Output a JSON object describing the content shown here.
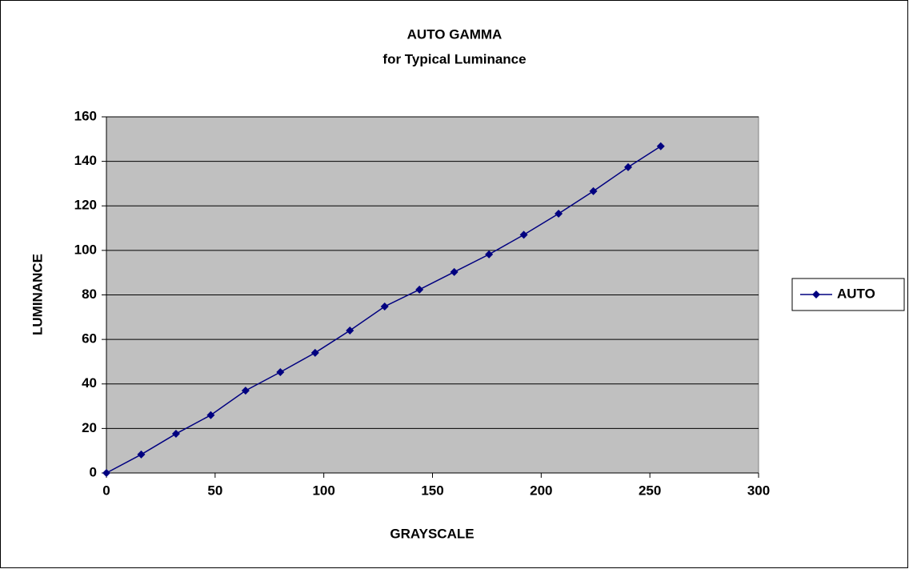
{
  "chart_data": {
    "type": "line",
    "title": "AUTO GAMMA",
    "subtitle": "for Typical Luminance",
    "x_label": "GRAYSCALE",
    "y_label": "LUMINANCE",
    "x": [
      0,
      16,
      32,
      48,
      64,
      80,
      96,
      112,
      128,
      144,
      160,
      176,
      192,
      208,
      224,
      240,
      255
    ],
    "series": [
      {
        "name": "AUTO",
        "color": "#000080",
        "values": [
          0,
          8.3,
          17.6,
          26,
          37,
          45.3,
          54,
          64,
          74.8,
          82.4,
          90.3,
          98.2,
          107,
          116.5,
          126.6,
          137.4,
          146.8
        ]
      }
    ],
    "xlim": [
      0,
      300
    ],
    "xticks": [
      0,
      50,
      100,
      150,
      200,
      250,
      300
    ],
    "ylim": [
      0,
      160
    ],
    "yticks": [
      0,
      20,
      40,
      60,
      80,
      100,
      120,
      140,
      160
    ],
    "grid": true,
    "legend": "right"
  }
}
